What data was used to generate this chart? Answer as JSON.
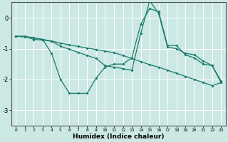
{
  "xlabel": "Humidex (Indice chaleur)",
  "ylabel": "",
  "background_color": "#cce8e4",
  "grid_color": "#ffffff",
  "line_color": "#1a7a6e",
  "xlim": [
    -0.5,
    23.5
  ],
  "ylim": [
    -3.5,
    0.5
  ],
  "yticks": [
    0,
    -1,
    -2,
    -3
  ],
  "xticks": [
    0,
    1,
    2,
    3,
    4,
    5,
    6,
    7,
    8,
    9,
    10,
    11,
    12,
    13,
    14,
    15,
    16,
    17,
    18,
    19,
    20,
    21,
    22,
    23
  ],
  "line1_y": [
    -0.6,
    -0.62,
    -0.65,
    -0.7,
    -0.75,
    -0.82,
    -0.88,
    -0.93,
    -0.98,
    -1.03,
    -1.08,
    -1.13,
    -1.22,
    -1.32,
    -1.42,
    -1.52,
    -1.6,
    -1.7,
    -1.8,
    -1.9,
    -2.0,
    -2.1,
    -2.2,
    -2.1
  ],
  "line2_y": [
    -0.6,
    -0.6,
    -0.65,
    -0.7,
    -1.15,
    -2.0,
    -2.45,
    -2.45,
    -2.45,
    -1.95,
    -1.6,
    -1.5,
    -1.5,
    -1.3,
    -0.2,
    0.3,
    0.2,
    -0.9,
    -0.9,
    -1.2,
    -1.3,
    -1.5,
    -1.55,
    -2.1
  ],
  "line3_y": [
    -0.6,
    -0.6,
    -0.7,
    -0.72,
    -0.76,
    -0.92,
    -1.02,
    -1.12,
    -1.22,
    -1.32,
    -1.55,
    -1.6,
    -1.65,
    -1.7,
    -0.5,
    0.55,
    0.15,
    -0.95,
    -1.0,
    -1.15,
    -1.2,
    -1.4,
    -1.55,
    -2.05
  ]
}
